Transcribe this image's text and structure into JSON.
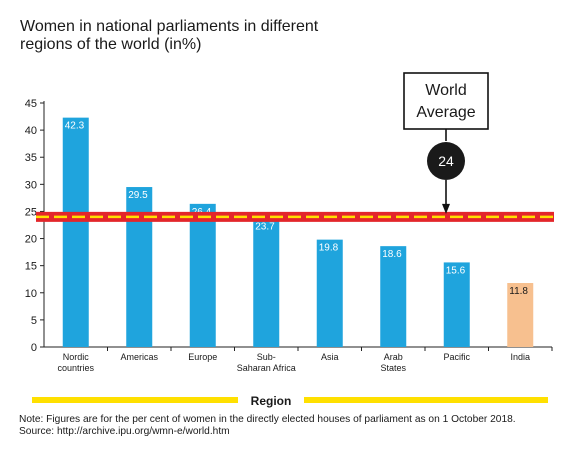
{
  "chart_data": {
    "type": "bar",
    "title_lines": [
      "Women in  national parliaments in different",
      "regions of the world (in%)"
    ],
    "xlabel": "Region",
    "ylim": [
      0,
      45
    ],
    "yticks": [
      0,
      5,
      10,
      15,
      20,
      25,
      30,
      35,
      40,
      45
    ],
    "categories": [
      [
        "Nordic",
        "countries"
      ],
      [
        "Americas"
      ],
      [
        "Europe"
      ],
      [
        "Sub-",
        "Saharan Africa"
      ],
      [
        "Asia"
      ],
      [
        "Arab",
        "States"
      ],
      [
        "Pacific"
      ],
      [
        "India"
      ]
    ],
    "values": [
      42.3,
      29.5,
      26.4,
      23.7,
      19.8,
      18.6,
      15.6,
      11.8
    ],
    "value_labels": [
      "42.3",
      "29.5",
      "26.4",
      "23.7",
      "19.8",
      "18.6",
      "15.6",
      "11.8"
    ],
    "bar_colors": [
      "#1fa4dd",
      "#1fa4dd",
      "#1fa4dd",
      "#1fa4dd",
      "#1fa4dd",
      "#1fa4dd",
      "#1fa4dd",
      "#f7c08f"
    ],
    "average": {
      "value": 24,
      "label": "24",
      "callout_lines": [
        "World",
        "Average"
      ],
      "line_color": "#e3262b",
      "dash_color": "#ffe000"
    },
    "region_bar_color": "#ffe000"
  },
  "note": {
    "text": "Note: Figures are for the per cent of women in the directly elected houses of parliament as on 1 October 2018.",
    "source": "Source: http://archive.ipu.org/wmn-e/world.htm"
  }
}
